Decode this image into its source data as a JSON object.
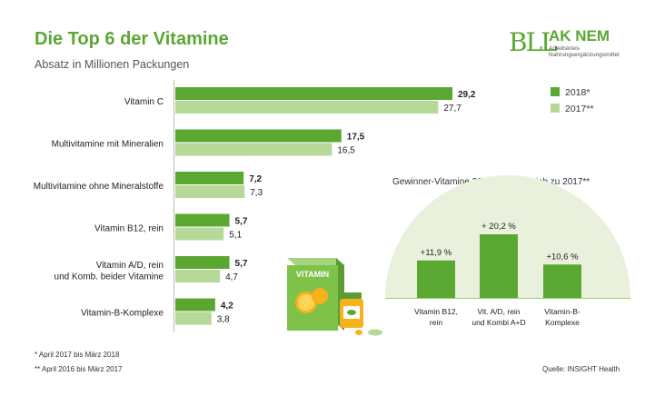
{
  "title": "Die Top 6 der Vitamine",
  "subtitle": "Absatz in Millionen Packungen",
  "logo": {
    "mark": "BLL",
    "name": "AK NEM",
    "sub1": "Arbeitskreis",
    "sub2": "Nahrungsergänzungsmittel"
  },
  "colors": {
    "series_2018": "#5aa832",
    "series_2017": "#b6d99a",
    "arc": "#e9f1dc",
    "box_green": "#7fc24a",
    "box_light": "#a6d37d"
  },
  "chart_data": [
    {
      "type": "bar",
      "orientation": "horizontal",
      "categories": [
        "Vitamin C",
        "Multivitamine mit Mineralien",
        "Multivitamine ohne Mineralstoffe",
        "Vitamin B12, rein",
        "Vitamin A/D, rein\nund Komb. beider Vitamine",
        "Vitamin-B-Komplexe"
      ],
      "series": [
        {
          "name": "2018*",
          "values": [
            29.2,
            17.5,
            7.2,
            5.7,
            5.7,
            4.2
          ],
          "labels": [
            "29,2",
            "17,5",
            "7,2",
            "5,7",
            "5,7",
            "4,2"
          ]
        },
        {
          "name": "2017**",
          "values": [
            27.7,
            16.5,
            7.3,
            5.1,
            4.7,
            3.8
          ],
          "labels": [
            "27,7",
            "16,5",
            "7,3",
            "5,1",
            "4,7",
            "3,8"
          ]
        }
      ],
      "xlim": [
        0,
        29.2
      ],
      "legend": "top-right"
    },
    {
      "type": "bar",
      "title": "Gewinner-Vitamine 2018* im Vergleich zu 2017**",
      "categories": [
        "Vitamin B12,\nrein",
        "Vit. A/D, rein\nund Kombi A+D",
        "Vitamin-B-\nKomplexe"
      ],
      "values": [
        11.9,
        20.2,
        10.6
      ],
      "labels": [
        "+11,9 %",
        "+ 20,2 %",
        "+10,6 %"
      ]
    }
  ],
  "illustration": {
    "box_label": "VITAMIN"
  },
  "footnotes": [
    "*  April 2017 bis März 2018",
    "** April 2016 bis März 2017"
  ],
  "source": "Quelle: INSIGHT Health"
}
